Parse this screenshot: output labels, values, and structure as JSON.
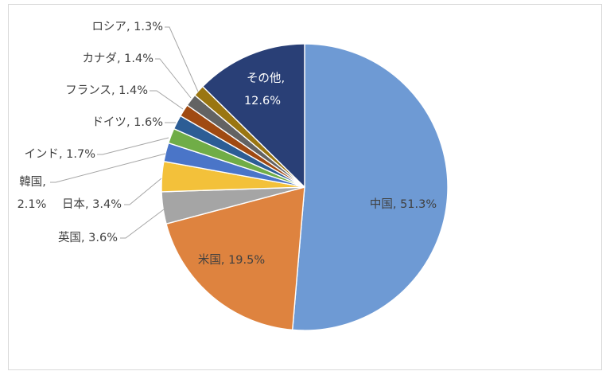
{
  "chart_data": {
    "type": "pie",
    "categories": [
      "中国",
      "米国",
      "英国",
      "日本",
      "韓国",
      "インド",
      "ドイツ",
      "フランス",
      "カナダ",
      "ロシア",
      "その他"
    ],
    "values": [
      51.3,
      19.5,
      3.6,
      3.4,
      2.1,
      1.7,
      1.6,
      1.4,
      1.4,
      1.3,
      12.6
    ],
    "colors": [
      "#6E9AD4",
      "#DE833F",
      "#A5A5A5",
      "#F3C13A",
      "#4A75C8",
      "#70AD47",
      "#2C5D95",
      "#A04A12",
      "#636363",
      "#9A7611",
      "#293F76"
    ],
    "value_suffix": "%"
  }
}
